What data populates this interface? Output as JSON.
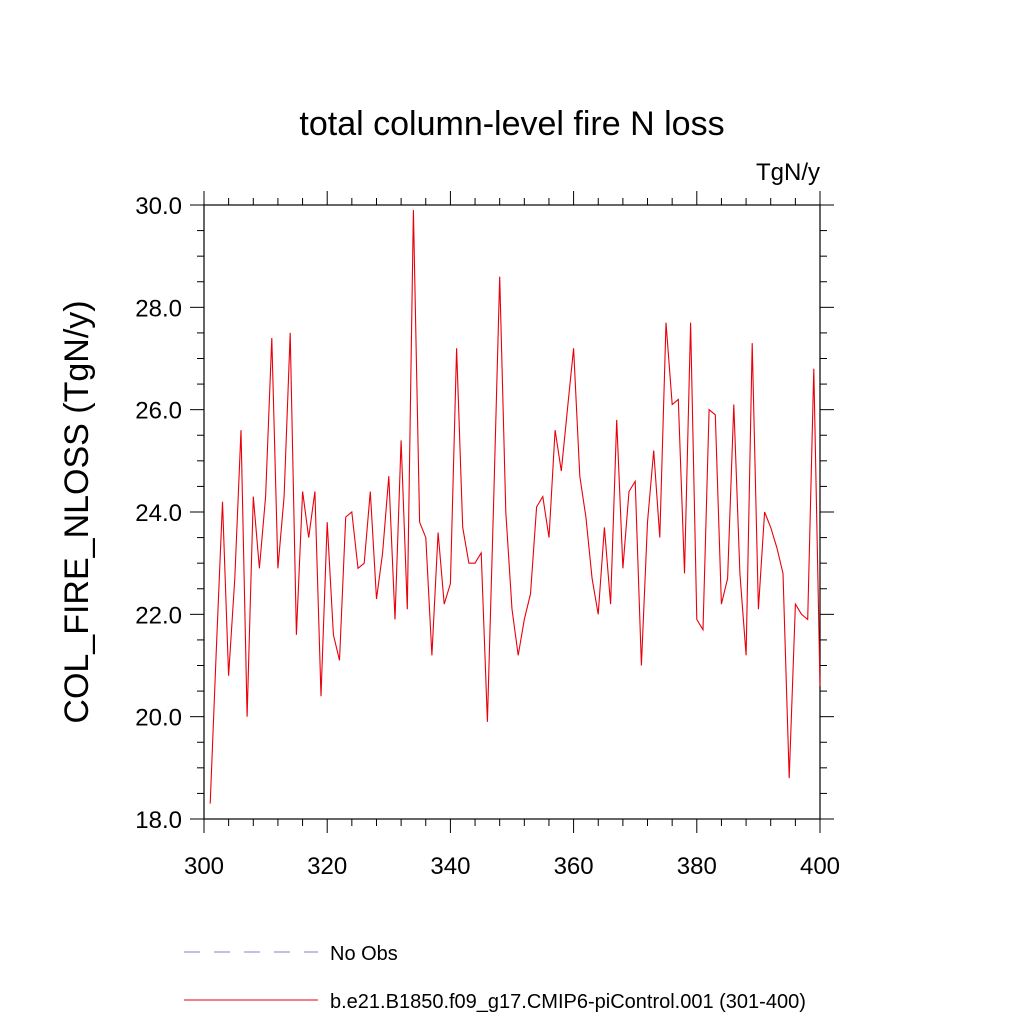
{
  "chart_data": {
    "type": "line",
    "title": "total column-level fire N loss",
    "units": "TgN/y",
    "xlabel": "",
    "ylabel": "COL_FIRE_NLOSS  (TgN/y)",
    "xlim": [
      300,
      400
    ],
    "ylim": [
      18.0,
      30.0
    ],
    "x_ticks": [
      300,
      320,
      340,
      360,
      380,
      400
    ],
    "y_ticks": [
      18.0,
      20.0,
      22.0,
      24.0,
      26.0,
      28.0,
      30.0
    ],
    "x_tick_labels": [
      "300",
      "320",
      "340",
      "360",
      "380",
      "400"
    ],
    "y_tick_labels": [
      "18.0",
      "20.0",
      "22.0",
      "24.0",
      "26.0",
      "28.0",
      "30.0"
    ],
    "grid": false,
    "legend_position": "bottom",
    "series": [
      {
        "name": "No Obs",
        "style": "dashed",
        "color": "#8a7fc0",
        "x": [],
        "y": []
      },
      {
        "name": "b.e21.B1850.f09_g17.CMIP6-piControl.001 (301-400)",
        "style": "solid",
        "color": "#e8000b",
        "x": [
          301,
          302,
          303,
          304,
          305,
          306,
          307,
          308,
          309,
          310,
          311,
          312,
          313,
          314,
          315,
          316,
          317,
          318,
          319,
          320,
          321,
          322,
          323,
          324,
          325,
          326,
          327,
          328,
          329,
          330,
          331,
          332,
          333,
          334,
          335,
          336,
          337,
          338,
          339,
          340,
          341,
          342,
          343,
          344,
          345,
          346,
          347,
          348,
          349,
          350,
          351,
          352,
          353,
          354,
          355,
          356,
          357,
          358,
          359,
          360,
          361,
          362,
          363,
          364,
          365,
          366,
          367,
          368,
          369,
          370,
          371,
          372,
          373,
          374,
          375,
          376,
          377,
          378,
          379,
          380,
          381,
          382,
          383,
          384,
          385,
          386,
          387,
          388,
          389,
          390,
          391,
          392,
          393,
          394,
          395,
          396,
          397,
          398,
          399,
          400
        ],
        "y": [
          18.3,
          21.3,
          24.2,
          20.8,
          22.7,
          25.6,
          20.0,
          24.3,
          22.9,
          24.3,
          27.4,
          22.9,
          24.3,
          27.5,
          21.6,
          24.4,
          23.5,
          24.4,
          20.4,
          23.8,
          21.6,
          21.1,
          23.9,
          24.0,
          22.9,
          23.0,
          24.4,
          22.3,
          23.2,
          24.7,
          21.9,
          25.4,
          22.1,
          29.9,
          23.8,
          23.5,
          21.2,
          23.6,
          22.2,
          22.6,
          27.2,
          23.7,
          23.0,
          23.0,
          23.2,
          19.9,
          24.1,
          28.6,
          24.0,
          22.1,
          21.2,
          21.9,
          22.4,
          24.1,
          24.3,
          23.5,
          25.6,
          24.8,
          26.0,
          27.2,
          24.7,
          23.9,
          22.7,
          22.0,
          23.7,
          22.2,
          25.8,
          22.9,
          24.4,
          24.6,
          21.0,
          23.8,
          25.2,
          23.5,
          27.7,
          26.1,
          26.2,
          22.8,
          27.7,
          21.9,
          21.7,
          26.0,
          25.9,
          22.2,
          22.7,
          26.1,
          22.8,
          21.2,
          27.3,
          22.1,
          24.0,
          23.7,
          23.3,
          22.8,
          18.8,
          22.2,
          22.0,
          21.9,
          26.8,
          20.6
        ]
      }
    ]
  }
}
